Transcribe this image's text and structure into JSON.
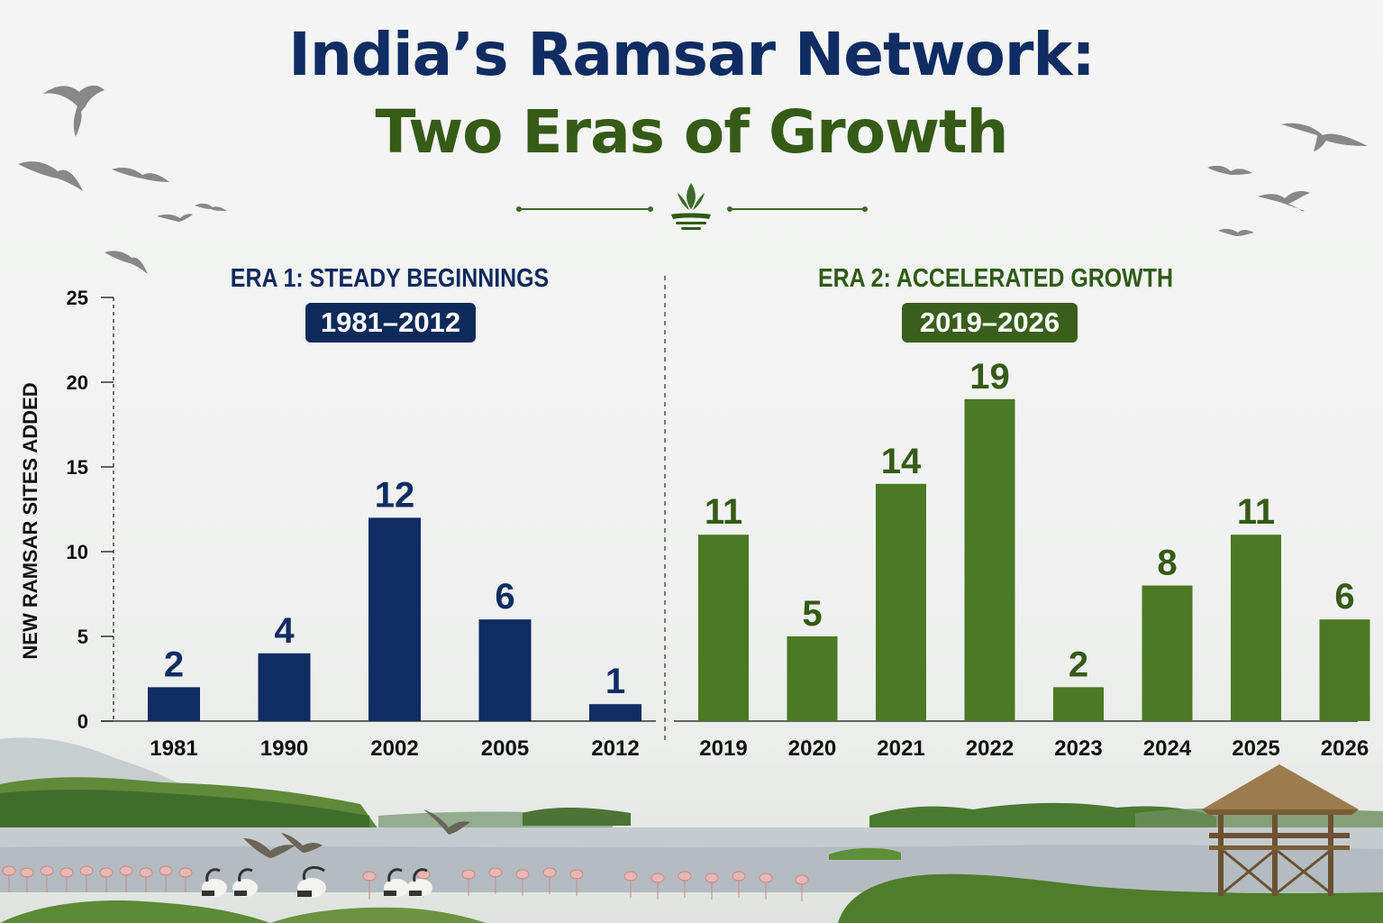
{
  "title": {
    "line1": "India’s Ramsar Network:",
    "line2": "Two Eras of Growth"
  },
  "colors": {
    "era1": "#0f2d63",
    "era2": "#4a7a24",
    "title_line1": "#0f2d63",
    "title_line2": "#355b17"
  },
  "icons": [
    "bird-icon",
    "wetland-plant-icon",
    "flamingo-icon",
    "pelican-icon",
    "watchtower-hut-icon"
  ],
  "eras": [
    {
      "label": "ERA 1: STEADY BEGINNINGS",
      "range": "1981–2012"
    },
    {
      "label": "ERA 2: ACCELERATED GROWTH",
      "range": "2019–2026"
    }
  ],
  "chart_data": {
    "type": "bar",
    "ylabel": "NEW RAMSAR SITES ADDED",
    "xlabel": "",
    "ylim": [
      0,
      25
    ],
    "yticks": [
      0,
      5,
      10,
      15,
      20,
      25
    ],
    "grid": false,
    "groups": [
      {
        "era": "ERA 1: STEADY BEGINNINGS",
        "categories": [
          "1981",
          "1990",
          "2002",
          "2005",
          "2012"
        ],
        "values": [
          2,
          4,
          12,
          6,
          1
        ]
      },
      {
        "era": "ERA 2: ACCELERATED GROWTH",
        "categories": [
          "2019",
          "2020",
          "2021",
          "2022",
          "2023",
          "2024",
          "2025",
          "2026"
        ],
        "values": [
          11,
          5,
          14,
          19,
          2,
          8,
          11,
          6
        ]
      }
    ]
  }
}
